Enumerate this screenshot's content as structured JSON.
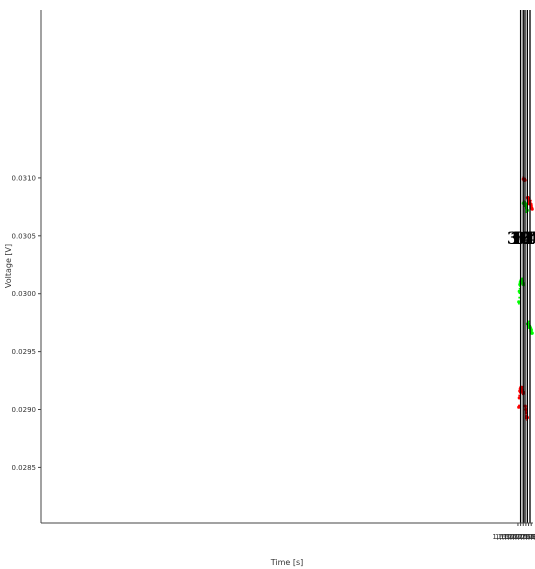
{
  "chart_data": {
    "type": "scatter",
    "xlabel": "Time [s]",
    "ylabel": "Voltage [V]",
    "xlim": [
      1611835000,
      1612020680
    ],
    "ylim": [
      0.02802,
      0.03245
    ],
    "x_ticks": [
      {
        "value": 1612015000,
        "label": "1,612,015,000"
      },
      {
        "value": 1612016000,
        "label": "1,612,016,000"
      },
      {
        "value": 1612017000,
        "label": "1,612,017,000"
      },
      {
        "value": 1612018000,
        "label": "1,612,018,000"
      },
      {
        "value": 1612019000,
        "label": "1,612,019,000"
      },
      {
        "value": 1612020000,
        "label": "1,612,020,000"
      }
    ],
    "y_ticks": [
      {
        "value": 0.0285,
        "label": "0.0285"
      },
      {
        "value": 0.029,
        "label": "0.0290"
      },
      {
        "value": 0.0295,
        "label": "0.0295"
      },
      {
        "value": 0.03,
        "label": "0.0300"
      },
      {
        "value": 0.0305,
        "label": "0.0305"
      },
      {
        "value": 0.031,
        "label": "0.0310"
      }
    ],
    "vertical_lines": [
      1612016000,
      1612017000,
      1612017650,
      1612018550,
      1612019550
    ],
    "annotations": [
      {
        "text": "30’",
        "x": 1612016420,
        "y": 0.03043
      },
      {
        "text": "10’",
        "x": 1612017380,
        "y": 0.03043
      },
      {
        "text": "14’",
        "x": 1612018080,
        "y": 0.03043
      },
      {
        "text": "30’",
        "x": 1612019050,
        "y": 0.03043
      }
    ],
    "series": [
      {
        "color": "#00ff00",
        "points": [
          [
            1612015300,
            0.02993
          ],
          [
            1612015500,
            0.03002
          ],
          [
            1612015700,
            0.03008
          ],
          [
            1612015900,
            0.0301
          ],
          [
            1612016100,
            0.03011
          ],
          [
            1612016300,
            0.03011
          ],
          [
            1612016500,
            0.03012
          ],
          [
            1612016700,
            0.03011
          ],
          [
            1612016900,
            0.03009
          ],
          [
            1612017000,
            0.03008
          ],
          [
            1612017050,
            0.03078
          ],
          [
            1612017250,
            0.03079
          ],
          [
            1612017450,
            0.03079
          ],
          [
            1612017650,
            0.03078
          ],
          [
            1612017850,
            0.03077
          ],
          [
            1612018050,
            0.03075
          ],
          [
            1612018250,
            0.03074
          ],
          [
            1612018550,
            0.03072
          ],
          [
            1612018600,
            0.02974
          ],
          [
            1612018800,
            0.02974
          ],
          [
            1612019000,
            0.02973
          ],
          [
            1612019200,
            0.02972
          ],
          [
            1612019400,
            0.02972
          ],
          [
            1612019600,
            0.02971
          ],
          [
            1612019800,
            0.0297
          ],
          [
            1612020000,
            0.02968
          ],
          [
            1612020200,
            0.02966
          ],
          [
            1612020380,
            0.02966
          ]
        ]
      },
      {
        "color": "#ff0000",
        "points": [
          [
            1612015300,
            0.02902
          ],
          [
            1612015500,
            0.0291
          ],
          [
            1612015700,
            0.02916
          ],
          [
            1612015900,
            0.02918
          ],
          [
            1612016100,
            0.02919
          ],
          [
            1612016300,
            0.02919
          ],
          [
            1612016500,
            0.02918
          ],
          [
            1612016700,
            0.02917
          ],
          [
            1612016900,
            0.02915
          ],
          [
            1612017000,
            0.02914
          ],
          [
            1612017050,
            0.03099
          ],
          [
            1612017250,
            0.03098
          ],
          [
            1612017450,
            0.03099
          ],
          [
            1612017620,
            0.03098
          ],
          [
            1612017700,
            0.02903
          ],
          [
            1612017900,
            0.029
          ],
          [
            1612018100,
            0.02897
          ],
          [
            1612018300,
            0.02894
          ],
          [
            1612018550,
            0.02893
          ],
          [
            1612018600,
            0.03083
          ],
          [
            1612018800,
            0.03082
          ],
          [
            1612019000,
            0.03081
          ],
          [
            1612019200,
            0.0308
          ],
          [
            1612019400,
            0.03079
          ],
          [
            1612019600,
            0.03078
          ],
          [
            1612019800,
            0.03077
          ],
          [
            1612020000,
            0.03076
          ],
          [
            1612020200,
            0.03074
          ],
          [
            1612020380,
            0.03073
          ]
        ]
      }
    ]
  }
}
